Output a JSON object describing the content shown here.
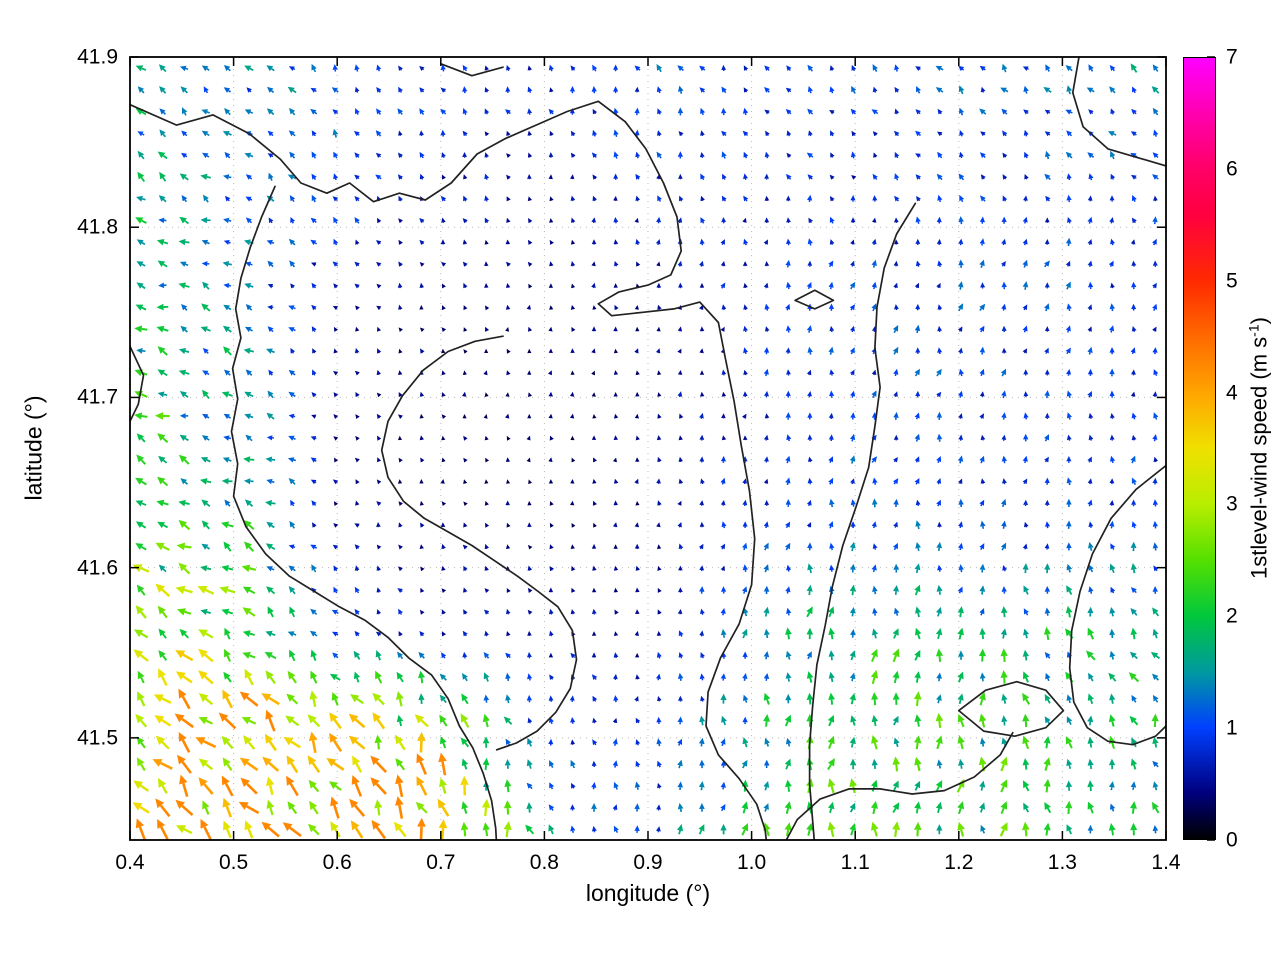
{
  "chart_data": {
    "type": "quiver",
    "title": "",
    "xlabel": "longitude (°)",
    "ylabel": "latitude (°)",
    "xlim": [
      0.4,
      1.4
    ],
    "ylim": [
      41.44,
      41.9
    ],
    "x_tick_values": [
      0.4,
      0.5,
      0.6,
      0.7,
      0.8,
      0.9,
      1.0,
      1.1,
      1.2,
      1.3,
      1.4
    ],
    "x_tick_labels": [
      "0.4",
      "0.5",
      "0.6",
      "0.7",
      "0.8",
      "0.9",
      "1.0",
      "1.1",
      "1.2",
      "1.3",
      "1.4"
    ],
    "y_tick_values": [
      41.5,
      41.6,
      41.7,
      41.8,
      41.9
    ],
    "y_tick_labels": [
      "41.5",
      "41.6",
      "41.7",
      "41.8",
      "41.9"
    ],
    "grid_dotted": true,
    "colorbar": {
      "label_prefix": "1stlevel-wind speed (m s",
      "label_sup": "-1",
      "label_suffix": ")",
      "min": 0,
      "max": 7,
      "tick_values": [
        0,
        1,
        2,
        3,
        4,
        5,
        6,
        7
      ],
      "tick_labels": [
        "0",
        "1",
        "2",
        "3",
        "4",
        "5",
        "6",
        "7"
      ],
      "gradient_stops": [
        [
          0.0,
          "#000000"
        ],
        [
          0.06,
          "#000080"
        ],
        [
          0.143,
          "#0040ff"
        ],
        [
          0.214,
          "#00999f"
        ],
        [
          0.286,
          "#00c83c"
        ],
        [
          0.357,
          "#55e000"
        ],
        [
          0.429,
          "#b8ee00"
        ],
        [
          0.5,
          "#f0e000"
        ],
        [
          0.571,
          "#ffa500"
        ],
        [
          0.643,
          "#ff6a00"
        ],
        [
          0.714,
          "#ff2a00"
        ],
        [
          0.8,
          "#ff0040"
        ],
        [
          0.857,
          "#ff0066"
        ],
        [
          0.929,
          "#ff00b0"
        ],
        [
          1.0,
          "#ff00ff"
        ]
      ]
    },
    "quiver_grid": {
      "nx": 48,
      "ny": 36,
      "seed": 7,
      "speed_cap": 4.25
    },
    "control_field": {
      "comment": "coarse sampled wind field (u=east, v=north, m/s); rows bottom lat to top lat",
      "lons": [
        0.4,
        0.5,
        0.6,
        0.7,
        0.8,
        0.9,
        1.0,
        1.1,
        1.2,
        1.3,
        1.4
      ],
      "lats": [
        41.44,
        41.5,
        41.56,
        41.62,
        41.67,
        41.73,
        41.78,
        41.84,
        41.9
      ],
      "u": [
        [
          -2.2,
          -2.4,
          -2.0,
          -1.2,
          -0.3,
          0.0,
          0.2,
          0.3,
          0.2,
          -0.2,
          -0.5
        ],
        [
          -2.2,
          -2.3,
          -1.8,
          -1.0,
          -0.3,
          0.0,
          0.1,
          0.2,
          0.1,
          -0.3,
          -0.6
        ],
        [
          -2.0,
          -1.9,
          -0.6,
          -0.3,
          -0.2,
          -0.1,
          0.0,
          0.1,
          0.0,
          -0.5,
          -0.8
        ],
        [
          -1.9,
          -1.6,
          -0.3,
          -0.1,
          -0.1,
          0.0,
          0.1,
          0.2,
          0.1,
          0.0,
          -0.3
        ],
        [
          -1.8,
          -1.4,
          -0.2,
          -0.1,
          0.0,
          0.0,
          0.1,
          0.2,
          0.2,
          0.1,
          0.0
        ],
        [
          -1.6,
          -1.2,
          -0.3,
          -0.1,
          0.0,
          0.0,
          0.1,
          0.2,
          0.2,
          0.1,
          0.0
        ],
        [
          -1.5,
          -1.1,
          -0.4,
          -0.2,
          -0.1,
          0.0,
          0.1,
          0.1,
          0.2,
          0.3,
          0.2
        ],
        [
          -1.2,
          -0.9,
          -0.5,
          -0.3,
          -0.2,
          -0.2,
          -0.3,
          -0.4,
          -0.5,
          -0.6,
          -0.7
        ],
        [
          -1.0,
          -0.8,
          -0.6,
          -0.4,
          -0.3,
          -0.4,
          -0.5,
          -0.6,
          -0.7,
          -0.8,
          -0.9
        ]
      ],
      "v": [
        [
          2.8,
          3.0,
          3.2,
          3.4,
          1.2,
          1.0,
          1.8,
          2.0,
          2.0,
          1.8,
          1.6
        ],
        [
          2.4,
          2.6,
          2.8,
          2.6,
          0.8,
          0.7,
          1.5,
          1.9,
          1.9,
          1.7,
          1.5
        ],
        [
          1.8,
          1.6,
          0.7,
          0.5,
          0.5,
          0.5,
          1.2,
          1.7,
          1.6,
          1.5,
          1.4
        ],
        [
          1.0,
          0.9,
          0.4,
          0.35,
          0.35,
          0.4,
          0.8,
          1.0,
          0.9,
          0.9,
          0.9
        ],
        [
          0.8,
          0.7,
          0.35,
          0.3,
          0.3,
          0.4,
          0.7,
          0.9,
          0.8,
          0.8,
          0.8
        ],
        [
          0.6,
          0.6,
          0.4,
          0.35,
          0.35,
          0.4,
          0.7,
          0.9,
          0.9,
          0.8,
          0.8
        ],
        [
          0.5,
          0.5,
          0.5,
          0.4,
          0.4,
          0.5,
          0.7,
          0.8,
          0.9,
          0.9,
          0.8
        ],
        [
          0.8,
          0.7,
          0.9,
          0.6,
          0.5,
          0.8,
          0.7,
          0.6,
          0.7,
          0.8,
          0.8
        ],
        [
          0.9,
          0.8,
          1.0,
          0.7,
          0.6,
          0.9,
          0.8,
          0.7,
          0.8,
          0.9,
          0.9
        ]
      ]
    },
    "contours": [
      [
        [
          0.4,
          41.872
        ],
        [
          0.445,
          41.86
        ],
        [
          0.48,
          41.866
        ],
        [
          0.515,
          41.855
        ],
        [
          0.545,
          41.84
        ],
        [
          0.565,
          41.826
        ],
        [
          0.59,
          41.82
        ],
        [
          0.612,
          41.826
        ],
        [
          0.635,
          41.815
        ],
        [
          0.66,
          41.82
        ],
        [
          0.685,
          41.816
        ],
        [
          0.71,
          41.826
        ],
        [
          0.735,
          41.843
        ],
        [
          0.762,
          41.852
        ],
        [
          0.792,
          41.86
        ],
        [
          0.822,
          41.868
        ],
        [
          0.852,
          41.874
        ],
        [
          0.878,
          41.862
        ],
        [
          0.898,
          41.846
        ],
        [
          0.915,
          41.826
        ],
        [
          0.928,
          41.806
        ],
        [
          0.932,
          41.786
        ],
        [
          0.922,
          41.772
        ],
        [
          0.9,
          41.766
        ],
        [
          0.872,
          41.762
        ],
        [
          0.852,
          41.755
        ],
        [
          0.865,
          41.748
        ],
        [
          0.895,
          41.75
        ],
        [
          0.925,
          41.752
        ],
        [
          0.95,
          41.756
        ],
        [
          0.968,
          41.744
        ],
        [
          0.975,
          41.722
        ],
        [
          0.983,
          41.698
        ],
        [
          0.99,
          41.672
        ],
        [
          0.998,
          41.645
        ],
        [
          1.003,
          41.617
        ],
        [
          1.0,
          41.59
        ],
        [
          0.988,
          41.567
        ],
        [
          0.97,
          41.547
        ],
        [
          0.958,
          41.527
        ],
        [
          0.956,
          41.507
        ],
        [
          0.968,
          41.49
        ],
        [
          0.988,
          41.476
        ],
        [
          1.005,
          41.461
        ],
        [
          1.013,
          41.446
        ],
        [
          1.015,
          41.436
        ]
      ],
      [
        [
          0.54,
          41.824
        ],
        [
          0.527,
          41.806
        ],
        [
          0.516,
          41.788
        ],
        [
          0.507,
          41.77
        ],
        [
          0.502,
          41.752
        ],
        [
          0.507,
          41.735
        ],
        [
          0.499,
          41.717
        ],
        [
          0.504,
          41.699
        ],
        [
          0.498,
          41.68
        ],
        [
          0.504,
          41.661
        ],
        [
          0.5,
          41.642
        ],
        [
          0.512,
          41.624
        ],
        [
          0.531,
          41.608
        ],
        [
          0.554,
          41.595
        ],
        [
          0.578,
          41.586
        ],
        [
          0.602,
          41.577
        ],
        [
          0.627,
          41.569
        ],
        [
          0.649,
          41.559
        ],
        [
          0.669,
          41.547
        ],
        [
          0.691,
          41.537
        ],
        [
          0.707,
          41.523
        ],
        [
          0.718,
          41.507
        ],
        [
          0.731,
          41.494
        ],
        [
          0.741,
          41.479
        ],
        [
          0.749,
          41.463
        ],
        [
          0.753,
          41.447
        ],
        [
          0.754,
          41.436
        ]
      ],
      [
        [
          0.76,
          41.736
        ],
        [
          0.733,
          41.733
        ],
        [
          0.707,
          41.727
        ],
        [
          0.683,
          41.716
        ],
        [
          0.663,
          41.701
        ],
        [
          0.649,
          41.686
        ],
        [
          0.643,
          41.669
        ],
        [
          0.649,
          41.653
        ],
        [
          0.664,
          41.639
        ],
        [
          0.684,
          41.629
        ],
        [
          0.707,
          41.621
        ],
        [
          0.73,
          41.613
        ],
        [
          0.752,
          41.604
        ],
        [
          0.774,
          41.595
        ],
        [
          0.794,
          41.586
        ],
        [
          0.813,
          41.577
        ],
        [
          0.827,
          41.563
        ],
        [
          0.831,
          41.546
        ],
        [
          0.825,
          41.529
        ],
        [
          0.811,
          41.515
        ],
        [
          0.793,
          41.504
        ],
        [
          0.773,
          41.497
        ],
        [
          0.754,
          41.493
        ]
      ],
      [
        [
          1.158,
          41.814
        ],
        [
          1.14,
          41.796
        ],
        [
          1.128,
          41.776
        ],
        [
          1.121,
          41.753
        ],
        [
          1.119,
          41.729
        ],
        [
          1.124,
          41.706
        ],
        [
          1.119,
          41.683
        ],
        [
          1.113,
          41.659
        ],
        [
          1.101,
          41.636
        ],
        [
          1.088,
          41.613
        ],
        [
          1.078,
          41.589
        ],
        [
          1.071,
          41.566
        ],
        [
          1.063,
          41.543
        ],
        [
          1.059,
          41.519
        ],
        [
          1.056,
          41.496
        ],
        [
          1.056,
          41.473
        ],
        [
          1.059,
          41.451
        ],
        [
          1.061,
          41.436
        ]
      ],
      [
        [
          1.316,
          41.9
        ],
        [
          1.31,
          41.879
        ],
        [
          1.32,
          41.859
        ],
        [
          1.344,
          41.846
        ],
        [
          1.372,
          41.841
        ],
        [
          1.4,
          41.836
        ]
      ],
      [
        [
          1.4,
          41.66
        ],
        [
          1.371,
          41.646
        ],
        [
          1.347,
          41.629
        ],
        [
          1.329,
          41.608
        ],
        [
          1.317,
          41.586
        ],
        [
          1.309,
          41.563
        ],
        [
          1.307,
          41.541
        ],
        [
          1.311,
          41.521
        ],
        [
          1.324,
          41.506
        ],
        [
          1.344,
          41.498
        ],
        [
          1.368,
          41.496
        ],
        [
          1.39,
          41.501
        ],
        [
          1.4,
          41.507
        ]
      ],
      [
        [
          1.2,
          41.516
        ],
        [
          1.226,
          41.528
        ],
        [
          1.256,
          41.533
        ],
        [
          1.284,
          41.528
        ],
        [
          1.301,
          41.516
        ],
        [
          1.284,
          41.506
        ],
        [
          1.254,
          41.501
        ],
        [
          1.224,
          41.504
        ],
        [
          1.2,
          41.516
        ]
      ],
      [
        [
          1.03,
          41.436
        ],
        [
          1.044,
          41.452
        ],
        [
          1.066,
          41.464
        ],
        [
          1.094,
          41.47
        ],
        [
          1.124,
          41.47
        ],
        [
          1.155,
          41.467
        ],
        [
          1.186,
          41.469
        ],
        [
          1.215,
          41.477
        ],
        [
          1.24,
          41.49
        ],
        [
          1.252,
          41.503
        ]
      ],
      [
        [
          1.042,
          41.757
        ],
        [
          1.061,
          41.763
        ],
        [
          1.079,
          41.757
        ],
        [
          1.061,
          41.752
        ],
        [
          1.042,
          41.757
        ]
      ],
      [
        [
          0.7,
          41.896
        ],
        [
          0.73,
          41.889
        ],
        [
          0.76,
          41.894
        ]
      ],
      [
        [
          0.4,
          41.73
        ],
        [
          0.413,
          41.713
        ],
        [
          0.408,
          41.696
        ],
        [
          0.4,
          41.686
        ]
      ]
    ]
  }
}
